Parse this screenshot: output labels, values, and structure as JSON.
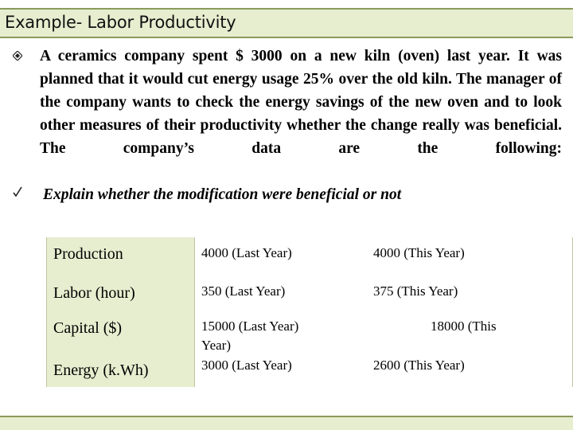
{
  "slide": {
    "title": "Example- Labor Productivity"
  },
  "bullets": [
    {
      "icon": "diamond-bullet-icon",
      "text": "A ceramics company spent $ 3000 on a new kiln (oven) last year. It was planned that it would cut energy usage 25% over the old kiln. The manager of the company wants to check the energy savings of the new oven and to look other measures of their productivity whether the change really was beneficial. The company’s data are the following:"
    },
    {
      "icon": "checkmark-bullet-icon",
      "text": "Explain whether the modification were beneficial or not"
    }
  ],
  "table": {
    "rows": [
      {
        "label": "Production",
        "last_year": "4000 (Last Year)",
        "this_year": "4000 (This Year)"
      },
      {
        "label": "Labor (hour)",
        "last_year": "350 (Last Year)",
        "this_year": "375 (This Year)"
      },
      {
        "label": "Capital ($)",
        "last_year": "15000 (Last Year)",
        "this_year": "18000 (This",
        "wrap": "Year)"
      },
      {
        "label": "Energy (k.Wh)",
        "last_year": "3000 (Last Year)",
        "this_year": "2600  (This Year)"
      }
    ]
  },
  "colors": {
    "bar_fill": "#e7edcf",
    "bar_border": "#8b9a5b"
  }
}
